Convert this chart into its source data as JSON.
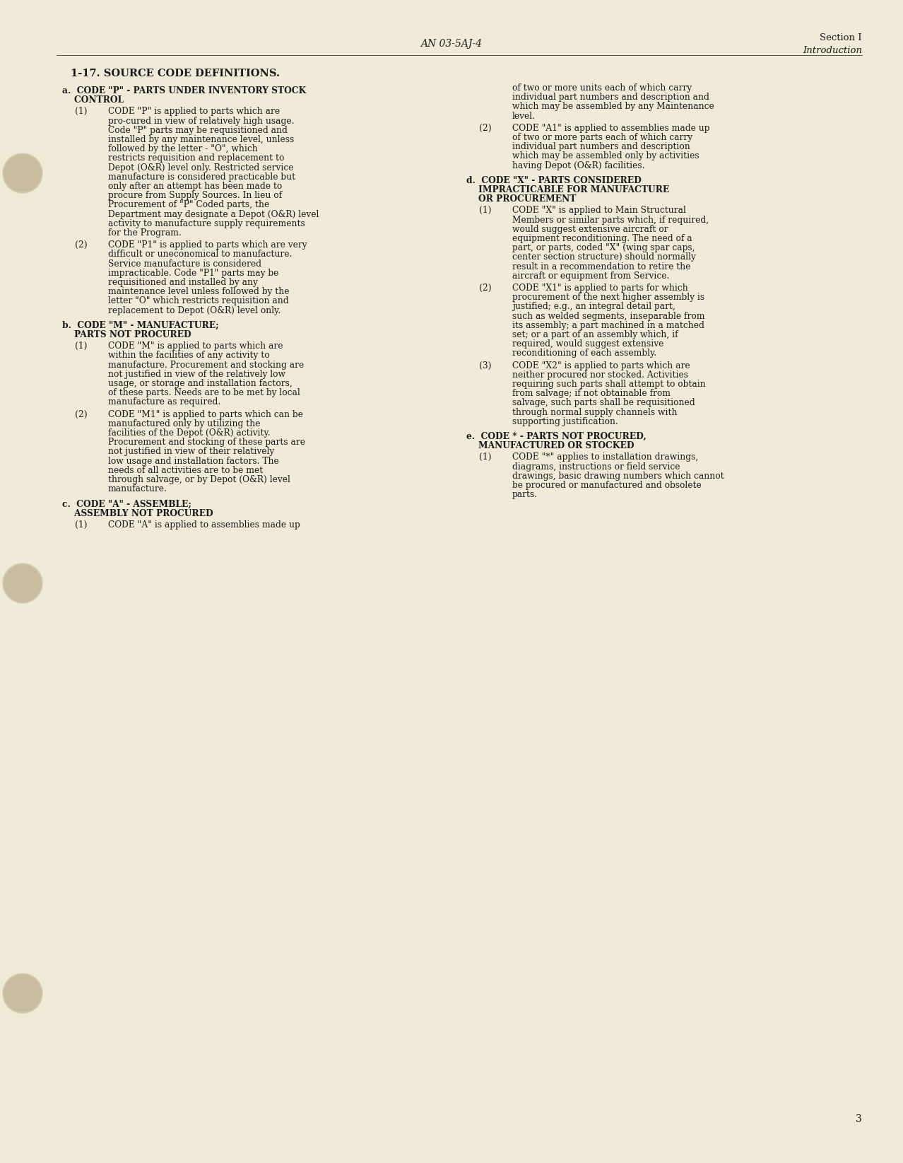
{
  "background_color": "#f5f0e0",
  "page_color": "#f0ead8",
  "header_center": "AN 03-5AJ-4",
  "header_right_line1": "Section I",
  "header_right_line2": "Introduction",
  "page_number": "3",
  "title": "1-17. SOURCE CODE DEFINITIONS.",
  "left_column": [
    {
      "type": "section_header",
      "text": "a.  CODE \"P\" - PARTS UNDER INVENTORY STOCK\n    CONTROL"
    },
    {
      "type": "body",
      "indent": 1,
      "number": "(1)",
      "text": "CODE \"P\" is applied to parts which are pro-cured in view of relatively high usage. Code \"P\" parts may be requisitioned and installed by any maintenance level, unless followed by the letter - \"O\", which restricts requisition and replacement to Depot (O&R) level only. Restricted service manufacture is considered practicable but only after an attempt has been made to procure from Supply Sources. In lieu of Procurement of \"P\" Coded parts, the Department may designate a Depot (O&R) level activity to manufacture supply requirements for the Program."
    },
    {
      "type": "body",
      "indent": 1,
      "number": "(2)",
      "text": "CODE \"P1\" is applied to parts which are very difficult or uneconomical to manufacture. Service manufacture is considered impracticable. Code \"P1\" parts may be requisitioned and installed by any maintenance level unless followed by the letter \"O\" which restricts requisition and replacement to Depot (O&R) level only."
    },
    {
      "type": "section_header",
      "text": "b.  CODE \"M\" - MANUFACTURE;\n    PARTS NOT PROCURED"
    },
    {
      "type": "body",
      "indent": 1,
      "number": "(1)",
      "text": "CODE \"M\" is applied to parts which are within the facilities of any activity to manufacture. Procurement and stocking are not justified in view of the relatively low usage, or storage and installation factors, of these parts. Needs are to be met by local manufacture as required."
    },
    {
      "type": "body",
      "indent": 1,
      "number": "(2)",
      "text": "CODE \"M1\" is applied to parts which can be manufactured only by utilizing the facilities of the Depot (O&R) activity. Procurement and stocking of these parts are not justified in view of their relatively low usage and installation factors. The needs of all activities are to be met through salvage, or by Depot (O&R) level manufacture."
    },
    {
      "type": "section_header",
      "text": "c.  CODE \"A\" - ASSEMBLE;\n    ASSEMBLY NOT PROCURED"
    },
    {
      "type": "body",
      "indent": 1,
      "number": "(1)",
      "text": "CODE \"A\" is applied to assemblies made up"
    }
  ],
  "right_column": [
    {
      "type": "body_continuation",
      "text": "of two or more units each of which carry individual part numbers and description and which may be assembled by any Maintenance level."
    },
    {
      "type": "body",
      "indent": 1,
      "number": "(2)",
      "text": "CODE \"A1\" is applied to assemblies made up of two or more parts each of which carry individual part numbers and description which may be assembled only by activities having Depot (O&R) facilities."
    },
    {
      "type": "section_header",
      "text": "d.  CODE \"X\" - PARTS CONSIDERED\n    IMPRACTICABLE FOR MANUFACTURE\n    OR PROCUREMENT"
    },
    {
      "type": "body",
      "indent": 1,
      "number": "(1)",
      "text": "CODE \"X\" is applied to Main Structural Members or similar parts which, if required, would suggest extensive aircraft or equipment reconditioning. The need of a part, or parts, coded \"X\" (wing spar caps, center section structure) should normally result in a recommendation to retire the aircraft or equipment from Service."
    },
    {
      "type": "body",
      "indent": 1,
      "number": "(2)",
      "text": "CODE \"X1\" is applied to parts for which procurement of the next higher assembly is justified; e.g., an integral detail part, such as welded segments, inseparable from its assembly; a part machined in a matched set; or a part of an assembly which, if required, would suggest extensive reconditioning of each assembly."
    },
    {
      "type": "body",
      "indent": 1,
      "number": "(3)",
      "text": "CODE \"X2\" is applied to parts which are neither procured nor stocked. Activities requiring such parts shall attempt to obtain from salvage; if not obtainable from salvage, such parts shall be requisitioned through normal supply channels with supporting justification."
    },
    {
      "type": "section_header",
      "text": "e.  CODE * - PARTS NOT PROCURED,\n    MANUFACTURED OR STOCKED"
    },
    {
      "type": "body",
      "indent": 1,
      "number": "(1)",
      "text": "CODE \"*\" applies to installation drawings, diagrams, instructions or field service drawings, basic drawing numbers which cannot be procured or manufactured and obsolete parts."
    }
  ]
}
